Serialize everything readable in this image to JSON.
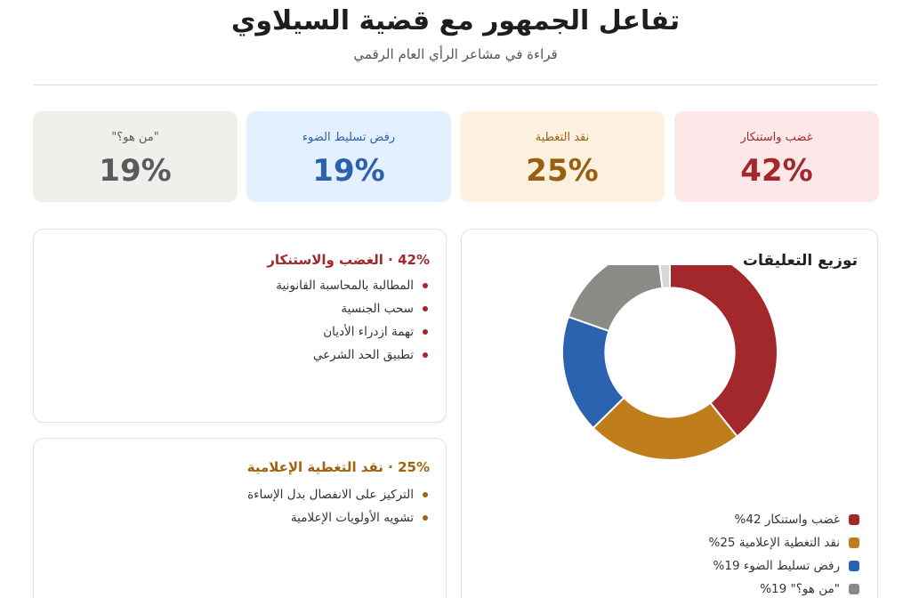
{
  "header": {
    "title": "تفاعل الجمهور مع قضية السيلاوي",
    "subtitle": "قراءة في مشاعر الرأي العام الرقمي"
  },
  "stats": [
    {
      "label": "غضب واستنكار",
      "value": "42%",
      "bg": "#fce8e8",
      "color": "#a3282b"
    },
    {
      "label": "نقد التغطية",
      "value": "25%",
      "bg": "#fcf0de",
      "color": "#9a5e12"
    },
    {
      "label": "رفض تسليط الضوء",
      "value": "19%",
      "bg": "#e4efff",
      "color": "#2a62b0"
    },
    {
      "label": "\"من هو؟\"",
      "value": "19%",
      "bg": "#f1efeb",
      "color": "#5a5a5a"
    }
  ],
  "groups": [
    {
      "title": "42% · الغضب والاستنكار",
      "color": "#a3282b",
      "items": [
        "المطالبة بالمحاسبة القانونية",
        "سحب الجنسية",
        "تهمة ازدراء الأديان",
        "تطبيق الحد الشرعي"
      ]
    },
    {
      "title": "25% · نقد التغطية الإعلامية",
      "color": "#a0640f",
      "items": [
        "التركيز على الانفصال بدل الإساءة",
        "تشويه الأولويات الإعلامية"
      ]
    }
  ],
  "chart_data": {
    "type": "pie",
    "title": "توزيع التعليقات",
    "hole": 0.6,
    "series": [
      {
        "name": "غضب واستنكار 42%",
        "value": 42,
        "color": "#a3282b"
      },
      {
        "name": "نقد التغطية الإعلامية 25%",
        "value": 25,
        "color": "#c07d1c"
      },
      {
        "name": "رفض تسليط الضوء 19%",
        "value": 19,
        "color": "#2a62b0"
      },
      {
        "name": "\"من هو؟\" 19%",
        "value": 19,
        "color": "#8a8a86"
      },
      {
        "name": "",
        "value": 2,
        "color": "#d9d7d3"
      }
    ]
  }
}
